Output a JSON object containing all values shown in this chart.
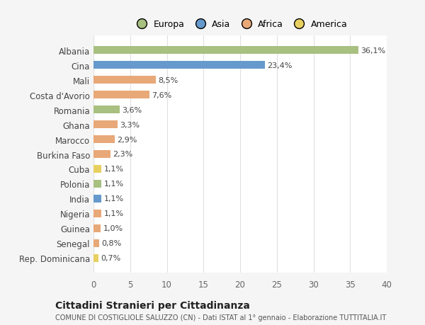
{
  "categories": [
    "Rep. Dominicana",
    "Senegal",
    "Guinea",
    "Nigeria",
    "India",
    "Polonia",
    "Cuba",
    "Burkina Faso",
    "Marocco",
    "Ghana",
    "Romania",
    "Costa d'Avorio",
    "Mali",
    "Cina",
    "Albania"
  ],
  "values": [
    0.7,
    0.8,
    1.0,
    1.1,
    1.1,
    1.1,
    1.1,
    2.3,
    2.9,
    3.3,
    3.6,
    7.6,
    8.5,
    23.4,
    36.1
  ],
  "labels": [
    "0,7%",
    "0,8%",
    "1,0%",
    "1,1%",
    "1,1%",
    "1,1%",
    "1,1%",
    "2,3%",
    "2,9%",
    "3,3%",
    "3,6%",
    "7,6%",
    "8,5%",
    "23,4%",
    "36,1%"
  ],
  "bar_colors": [
    "#e8d060",
    "#e8a878",
    "#e8a878",
    "#e8a878",
    "#6699cc",
    "#a8c080",
    "#e8d060",
    "#e8a878",
    "#e8a878",
    "#e8a878",
    "#a8c080",
    "#e8a878",
    "#e8a878",
    "#6699cc",
    "#a8c080"
  ],
  "title": "Cittadini Stranieri per Cittadinanza",
  "subtitle": "COMUNE DI COSTIGLIOLE SALUZZO (CN) - Dati ISTAT al 1° gennaio - Elaborazione TUTTITALIA.IT",
  "xlim": [
    0,
    40
  ],
  "xticks": [
    0,
    5,
    10,
    15,
    20,
    25,
    30,
    35,
    40
  ],
  "background_color": "#f5f5f5",
  "plot_background": "#ffffff",
  "grid_color": "#e0e0e0",
  "legend_labels": [
    "Europa",
    "Asia",
    "Africa",
    "America"
  ],
  "legend_colors": [
    "#a8c080",
    "#6699cc",
    "#e8a878",
    "#e8d060"
  ]
}
